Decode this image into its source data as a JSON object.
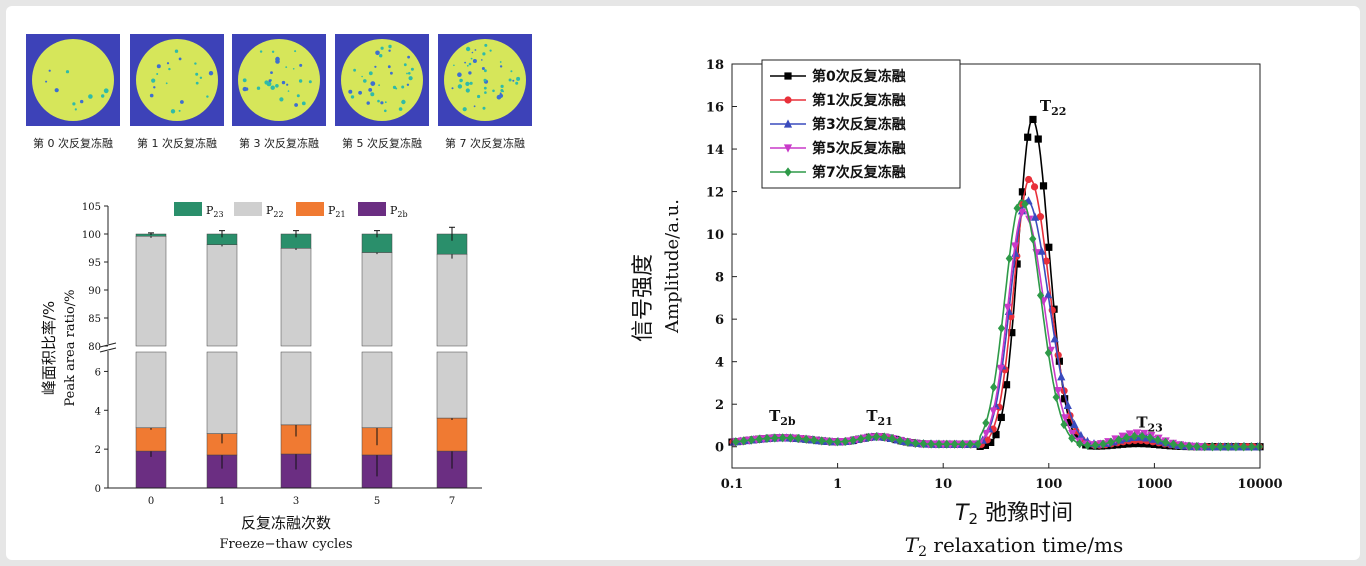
{
  "images": [
    {
      "caption": "第 0 次反复冻融"
    },
    {
      "caption": "第 1 次反复冻融"
    },
    {
      "caption": "第 3 次反复冻融"
    },
    {
      "caption": "第 5 次反复冻融"
    },
    {
      "caption": "第 7 次反复冻融"
    }
  ],
  "colors": {
    "P23": "#2a8f6b",
    "P22": "#cfcfcf",
    "P21": "#f07a32",
    "P2b": "#6b2e82",
    "c0": "#000000",
    "c1": "#e8303a",
    "c3": "#3a4bbd",
    "c5": "#c93ac9",
    "c7": "#2e9a48"
  },
  "chart_data": [
    {
      "type": "bar",
      "stacked": true,
      "categories": [
        "0",
        "1",
        "3",
        "5",
        "7"
      ],
      "series": [
        {
          "name": "P2b",
          "values": [
            1.9,
            1.7,
            1.75,
            1.7,
            1.9
          ],
          "errors": [
            0.3,
            0.7,
            0.8,
            1.1,
            0.9
          ]
        },
        {
          "name": "P21",
          "values": [
            1.2,
            1.1,
            1.5,
            1.4,
            1.7
          ],
          "errors": [
            0.1,
            0.5,
            0.6,
            0.9,
            0.1
          ]
        },
        {
          "name": "P22",
          "values": [
            96.5,
            95.3,
            94.2,
            93.6,
            92.8
          ],
          "errors": [
            0.3,
            0.3,
            0.3,
            0.3,
            0.8
          ]
        },
        {
          "name": "P23",
          "values": [
            0.4,
            1.9,
            2.55,
            3.3,
            3.6
          ],
          "errors": [
            0.2,
            0.6,
            0.6,
            0.6,
            1.2
          ]
        }
      ],
      "ylabel_cn": "峰面积比率/%",
      "ylabel_en": "Peak area ratio/%",
      "xlabel_cn": "反复冻融次数",
      "xlabel_en": "Freeze−thaw cycles",
      "ylim_lower": [
        0,
        7
      ],
      "ylim_upper": [
        80,
        105
      ],
      "yticks_lower": [
        "0",
        "2",
        "4",
        "6"
      ],
      "yticks_upper": [
        "80",
        "85",
        "90",
        "95",
        "100",
        "105"
      ],
      "legend": [
        "P23",
        "P22",
        "P21",
        "P2b"
      ],
      "legend_placement": "top"
    },
    {
      "type": "scatter",
      "x_scale": "log",
      "xlim": [
        0.1,
        10000
      ],
      "ylim": [
        -1,
        18
      ],
      "xticks": [
        "0.1",
        "1",
        "10",
        "100",
        "1000",
        "10000"
      ],
      "yticks": [
        "0",
        "2",
        "4",
        "6",
        "8",
        "10",
        "12",
        "14",
        "16",
        "18"
      ],
      "ylabel_cn": "信号强度",
      "ylabel_en": "Amplitude/a.u.",
      "xlabel_cn": "T2 弛豫时间",
      "xlabel_en": "T2 relaxation time/ms",
      "legend_placement": "top-left",
      "series": [
        {
          "name": "第0次反复冻融",
          "marker": "square",
          "color": "#000000",
          "peak_x": 70,
          "peak_y": 15.4,
          "width_left": 0.19,
          "width_right": 0.22,
          "p23_y": 0.15
        },
        {
          "name": "第1次反复冻融",
          "marker": "circle",
          "color": "#e8303a",
          "peak_x": 66,
          "peak_y": 12.6,
          "width_left": 0.21,
          "width_right": 0.26,
          "p23_y": 0.3
        },
        {
          "name": "第3次反复冻融",
          "marker": "triangle-up",
          "color": "#3a4bbd",
          "peak_x": 62,
          "peak_y": 11.6,
          "width_left": 0.22,
          "width_right": 0.29,
          "p23_y": 0.45
        },
        {
          "name": "第5次反复冻融",
          "marker": "triangle-down",
          "color": "#c93ac9",
          "peak_x": 58,
          "peak_y": 11.1,
          "width_left": 0.21,
          "width_right": 0.27,
          "p23_y": 0.65
        },
        {
          "name": "第7次反复冻融",
          "marker": "diamond",
          "color": "#2e9a48",
          "peak_x": 55,
          "peak_y": 11.6,
          "width_left": 0.22,
          "width_right": 0.26,
          "p23_y": 0.5
        }
      ],
      "annotations": [
        {
          "text": "T2b",
          "x": 0.3,
          "y": 1.2
        },
        {
          "text": "T21",
          "x": 2.5,
          "y": 1.2
        },
        {
          "text": "T22",
          "x": 110,
          "y": 15.8
        },
        {
          "text": "T23",
          "x": 900,
          "y": 0.9
        }
      ]
    }
  ]
}
